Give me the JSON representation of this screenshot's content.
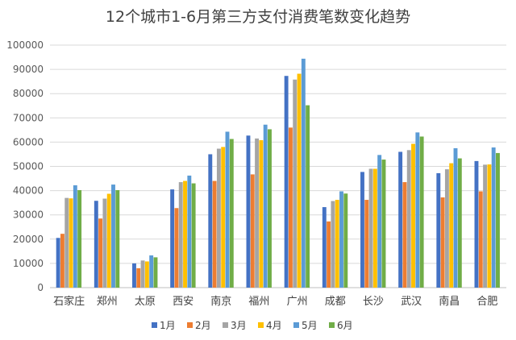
{
  "chart_data": {
    "type": "bar",
    "title": "12个城市1-6月第三方支付消费笔数变化趋势",
    "xlabel": "",
    "ylabel": "",
    "ylim": [
      0,
      100000
    ],
    "yticks": [
      0,
      10000,
      20000,
      30000,
      40000,
      50000,
      60000,
      70000,
      80000,
      90000,
      100000
    ],
    "grid": true,
    "legend_position": "bottom",
    "categories": [
      "石家庄",
      "郑州",
      "太原",
      "西安",
      "南京",
      "福州",
      "广州",
      "成都",
      "长沙",
      "武汉",
      "南昌",
      "合肥"
    ],
    "series": [
      {
        "name": "1月",
        "color": "#4472C4",
        "values": [
          20500,
          35800,
          10000,
          40500,
          55000,
          62700,
          87300,
          33200,
          47700,
          56000,
          47200,
          52200
        ]
      },
      {
        "name": "2月",
        "color": "#ED7D31",
        "values": [
          22200,
          28500,
          8000,
          32800,
          44000,
          46700,
          66000,
          27300,
          36200,
          43500,
          37200,
          39700
        ]
      },
      {
        "name": "3月",
        "color": "#A5A5A5",
        "values": [
          37000,
          36700,
          11200,
          43500,
          57300,
          61500,
          85800,
          35700,
          49000,
          56700,
          48800,
          50700
        ]
      },
      {
        "name": "4月",
        "color": "#FFC000",
        "values": [
          36800,
          38700,
          10800,
          44000,
          58000,
          60800,
          88200,
          36200,
          49000,
          59300,
          51300,
          50800
        ]
      },
      {
        "name": "5月",
        "color": "#5B9BD5",
        "values": [
          42200,
          42500,
          13300,
          46200,
          64300,
          67200,
          94400,
          39700,
          54700,
          64000,
          57500,
          57800
        ]
      },
      {
        "name": "6月",
        "color": "#70AD47",
        "values": [
          40200,
          40200,
          12500,
          43000,
          61300,
          65300,
          75200,
          38800,
          52800,
          62300,
          53300,
          55500
        ]
      }
    ]
  }
}
